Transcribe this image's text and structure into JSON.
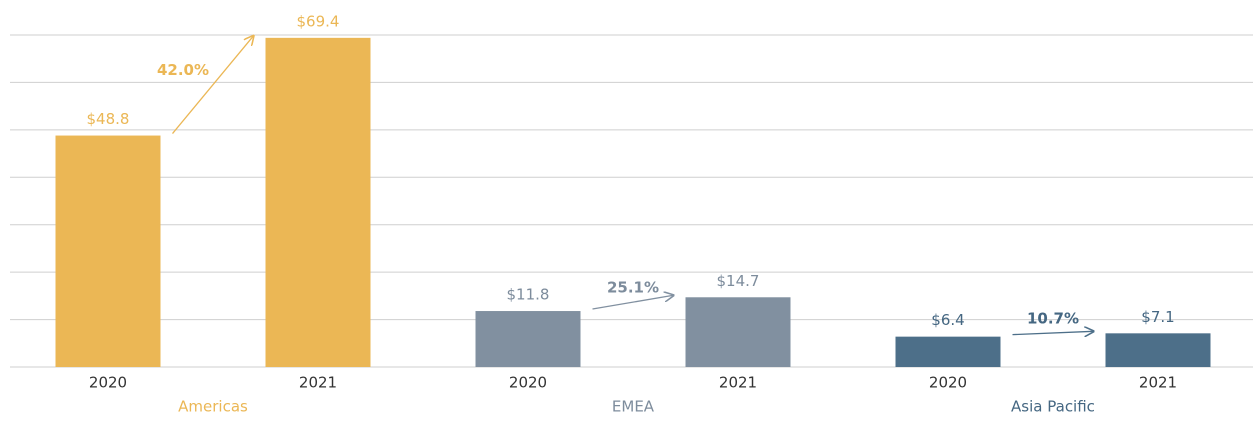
{
  "chart_data": {
    "type": "bar",
    "ylim": [
      0,
      70
    ],
    "yticks": [
      0,
      10,
      20,
      30,
      40,
      50,
      60,
      70
    ],
    "grid": true,
    "groups": [
      {
        "name": "Americas",
        "color": "#ebb755",
        "label_color": "#ebb755",
        "categories": [
          "2020",
          "2021"
        ],
        "values": [
          48.8,
          69.4
        ],
        "value_labels": [
          "$48.8",
          "$69.4"
        ],
        "annotation": "42.0%"
      },
      {
        "name": "EMEA",
        "color": "#8190a0",
        "label_color": "#7d8c9c",
        "categories": [
          "2020",
          "2021"
        ],
        "values": [
          11.8,
          14.7
        ],
        "value_labels": [
          "$11.8",
          "$14.7"
        ],
        "annotation": "25.1%"
      },
      {
        "name": "Asia Pacific",
        "color": "#4d6f89",
        "label_color": "#456782",
        "categories": [
          "2020",
          "2021"
        ],
        "values": [
          6.4,
          7.1
        ],
        "value_labels": [
          "$6.4",
          "$7.1"
        ],
        "annotation": "10.7%"
      }
    ]
  }
}
